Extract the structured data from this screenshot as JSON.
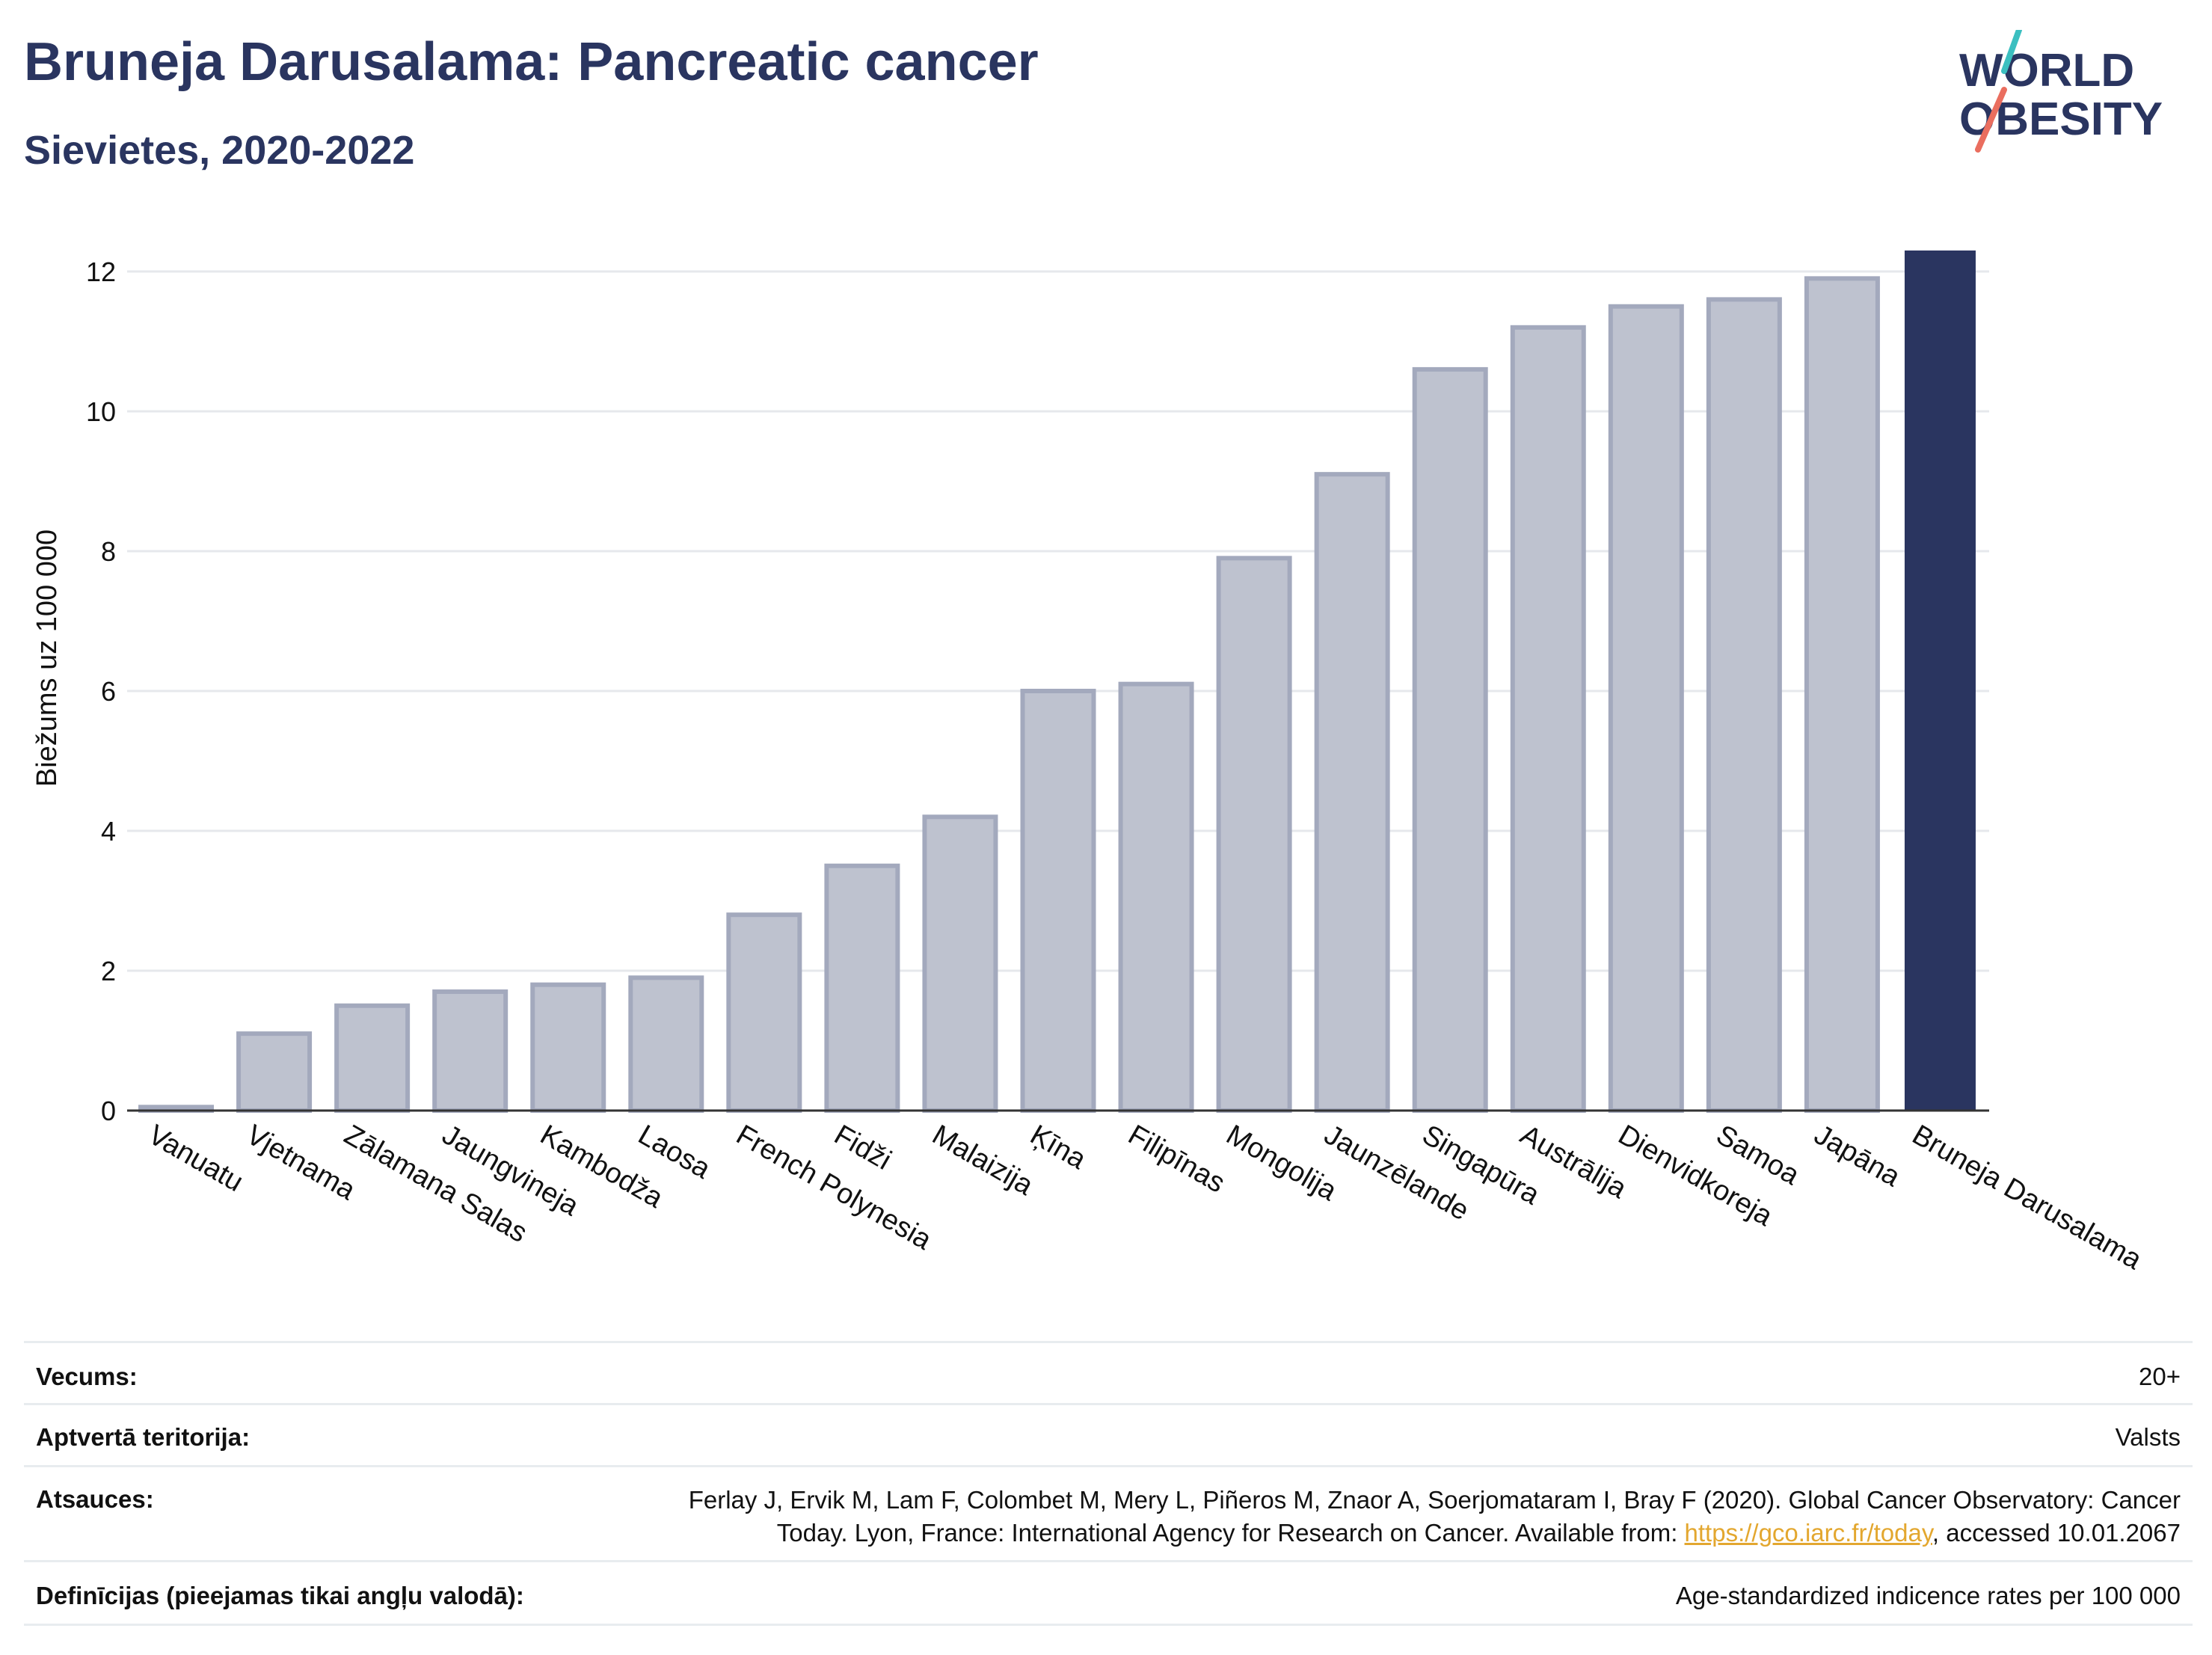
{
  "header": {
    "title": "Bruneja Darusalama: Pancreatic cancer",
    "subtitle": "Sievietes, 2020-2022",
    "logo_text_1": "WORLD",
    "logo_text_2": "OBESITY"
  },
  "colors": {
    "highlight_bar": "#2a3560",
    "other_bar_fill": "#bec2cf",
    "other_bar_stroke": "#a3a9bd",
    "logo_navy": "#2a3560",
    "logo_teal": "#3bbfc0",
    "logo_coral": "#ea6e5f",
    "link": "#e3a72f"
  },
  "chart_data": {
    "type": "bar",
    "categories": [
      "Vanuatu",
      "Vjetnama",
      "Zālamana Salas",
      "Jaungvineja",
      "Kambodža",
      "Laosa",
      "French Polynesia",
      "Fidži",
      "Malaizija",
      "Ķīna",
      "Filipīnas",
      "Mongolija",
      "Jaunzēlande",
      "Singapūra",
      "Austrālija",
      "Dienvidkoreja",
      "Samoa",
      "Japāna",
      "Bruneja Darusalama"
    ],
    "values": [
      0.05,
      1.1,
      1.5,
      1.7,
      1.8,
      1.9,
      2.8,
      3.5,
      4.2,
      6.0,
      6.1,
      7.9,
      9.1,
      10.6,
      11.2,
      11.5,
      11.6,
      11.9,
      12.3
    ],
    "highlight": "Bruneja Darusalama",
    "ylabel": "Biežums uz 100 000",
    "xlabel": "",
    "ylim": [
      0,
      12.6
    ],
    "yticks": [
      0,
      2,
      4,
      6,
      8,
      10,
      12
    ],
    "grid": true
  },
  "info": {
    "rows": [
      {
        "label": "Vecums:",
        "value": "20+"
      },
      {
        "label": "Aptvertā teritorija:",
        "value": "Valsts"
      },
      {
        "label": "Atsauces:",
        "value_line1": "Ferlay J, Ervik M, Lam F, Colombet M, Mery L, Piñeros M, Znaor A, Soerjomataram I, Bray F (2020). Global Cancer Observatory: Cancer",
        "value_line2_pre": "Today. Lyon, France: International Agency for Research on Cancer. Available from: ",
        "link": "https://gco.iarc.fr/today",
        "value_line2_post": ", accessed 10.01.2067"
      },
      {
        "label": "Definīcijas (pieejamas tikai angļu valodā):",
        "value": "Age-standardized indicence rates per 100 000"
      }
    ]
  }
}
